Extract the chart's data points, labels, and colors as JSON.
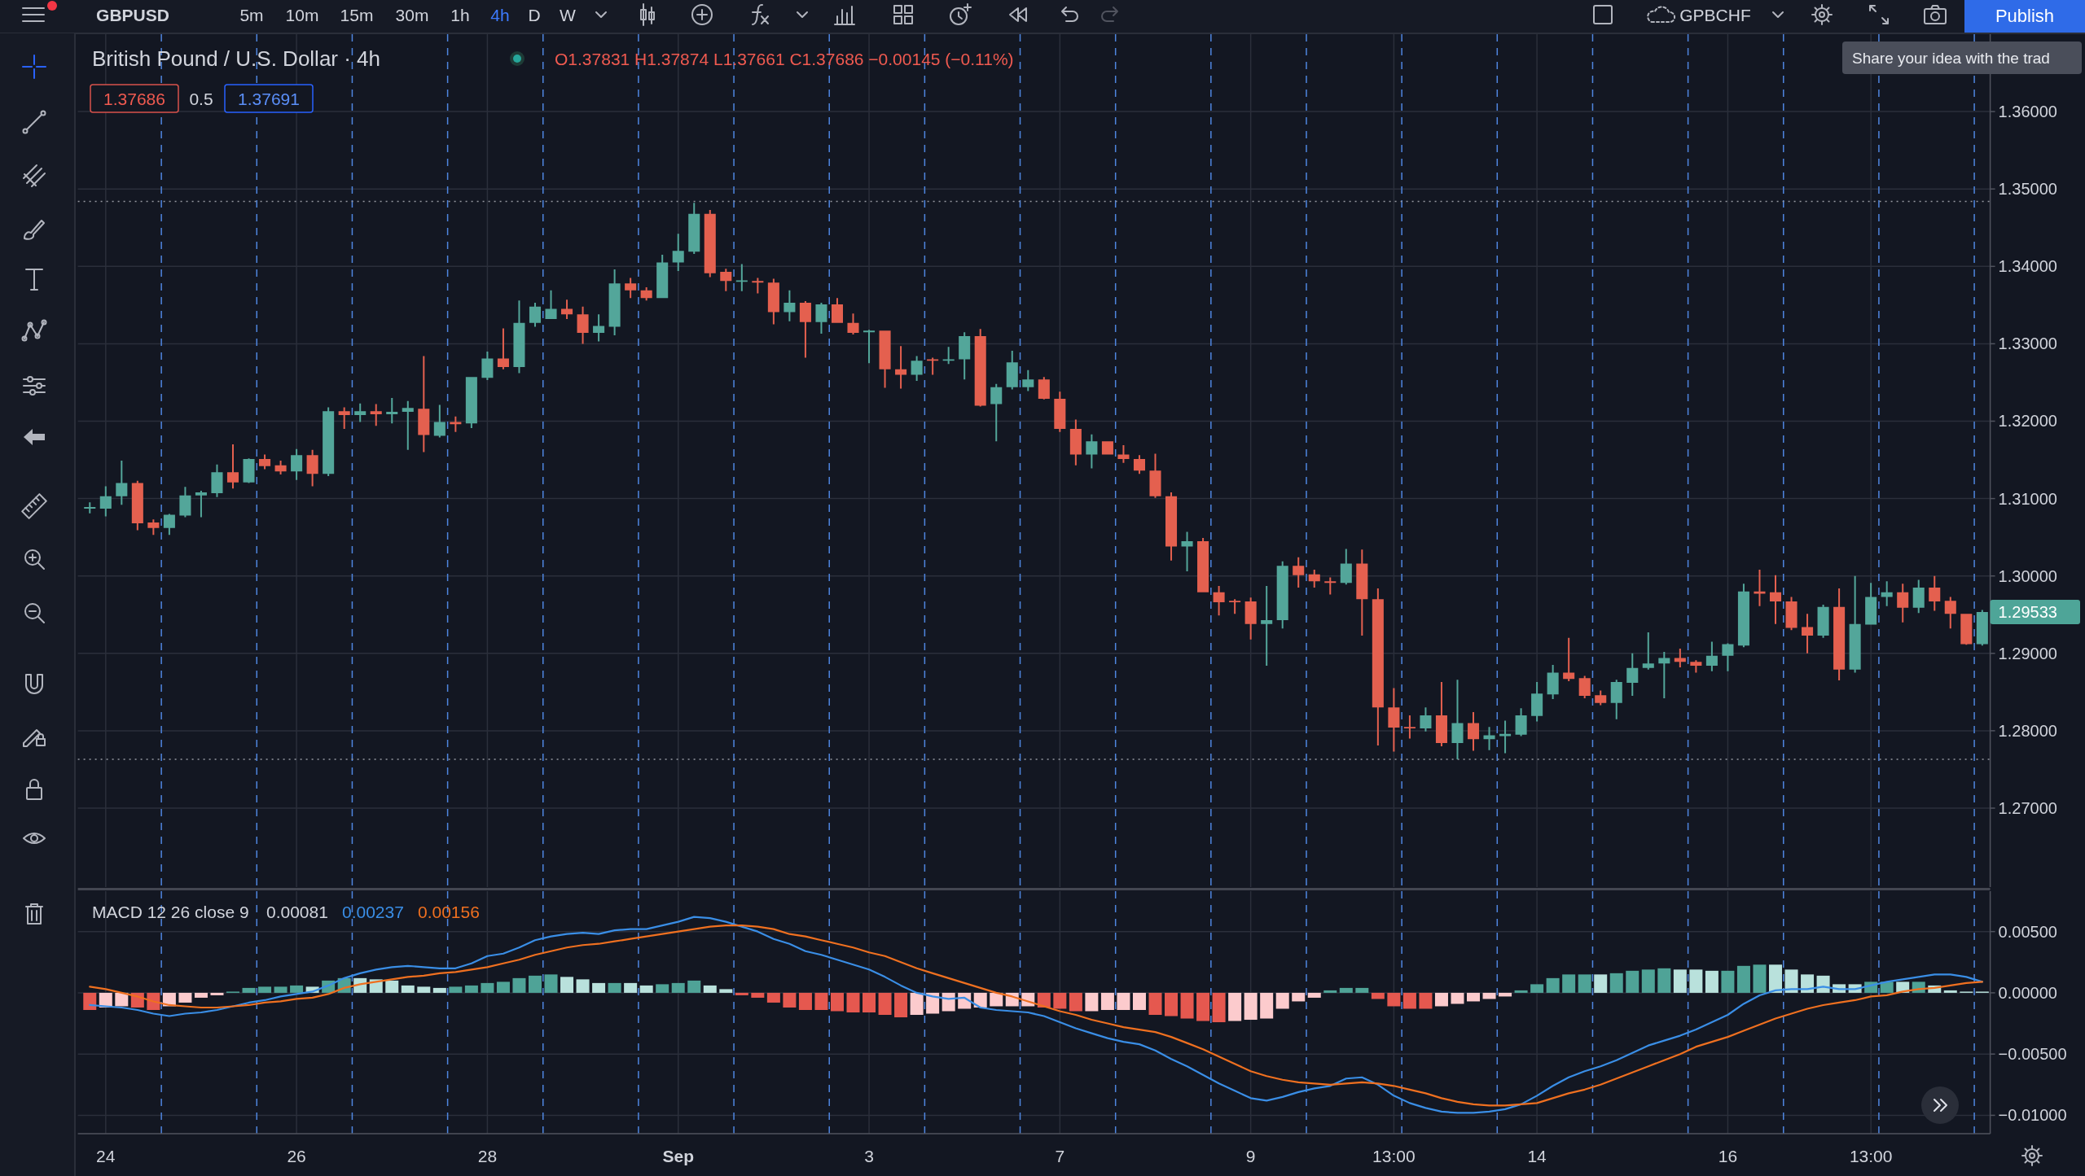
{
  "chart_data": [
    {
      "type": "candlestick",
      "title": "British Pound / U.S. Dollar · 4h",
      "categories": [
        null,
        "24",
        null,
        null,
        null,
        null,
        null,
        null,
        null,
        null,
        null,
        null,
        null,
        "26",
        null,
        null,
        null,
        null,
        null,
        null,
        null,
        null,
        null,
        null,
        null,
        "28",
        null,
        null,
        null,
        null,
        null,
        null,
        null,
        null,
        null,
        null,
        null,
        "Sep",
        null,
        null,
        null,
        null,
        null,
        null,
        null,
        null,
        null,
        null,
        null,
        "3",
        null,
        null,
        null,
        null,
        null,
        null,
        null,
        null,
        null,
        null,
        null,
        "7",
        null,
        null,
        null,
        null,
        null,
        null,
        null,
        null,
        null,
        null,
        null,
        "9",
        null,
        null,
        null,
        null,
        null,
        null,
        null,
        null,
        "13:00",
        null,
        null,
        null,
        null,
        null,
        null,
        null,
        null,
        "14",
        null,
        null,
        null,
        null,
        null,
        null,
        null,
        null,
        null,
        null,
        null,
        "16",
        null,
        null,
        null,
        null,
        null,
        null,
        null,
        null,
        "13:00",
        null,
        null,
        null,
        null,
        null,
        null,
        null
      ],
      "ohlc": [
        [
          1.3087,
          1.3095,
          1.3081,
          1.3089
        ],
        [
          1.3087,
          1.3116,
          1.3077,
          1.3103
        ],
        [
          1.3103,
          1.3149,
          1.3092,
          1.312
        ],
        [
          1.312,
          1.3123,
          1.3059,
          1.3068
        ],
        [
          1.3069,
          1.3073,
          1.3053,
          1.3062
        ],
        [
          1.3062,
          1.308,
          1.3053,
          1.3079
        ],
        [
          1.3078,
          1.3115,
          1.3076,
          1.3104
        ],
        [
          1.3104,
          1.311,
          1.3076,
          1.3108
        ],
        [
          1.3107,
          1.3144,
          1.3102,
          1.3134
        ],
        [
          1.3134,
          1.317,
          1.3113,
          1.3121
        ],
        [
          1.3121,
          1.3152,
          1.312,
          1.3151
        ],
        [
          1.3151,
          1.3157,
          1.3138,
          1.3142
        ],
        [
          1.3143,
          1.3149,
          1.3131,
          1.3135
        ],
        [
          1.3135,
          1.3164,
          1.3124,
          1.3156
        ],
        [
          1.3156,
          1.3163,
          1.3116,
          1.3132
        ],
        [
          1.3132,
          1.3218,
          1.3129,
          1.3213
        ],
        [
          1.3213,
          1.3218,
          1.319,
          1.3208
        ],
        [
          1.3208,
          1.3223,
          1.3199,
          1.3213
        ],
        [
          1.3213,
          1.3222,
          1.3194,
          1.3209
        ],
        [
          1.3209,
          1.323,
          1.3197,
          1.3212
        ],
        [
          1.3212,
          1.3226,
          1.3163,
          1.3217
        ],
        [
          1.3216,
          1.3284,
          1.316,
          1.3182
        ],
        [
          1.3181,
          1.3221,
          1.3179,
          1.3199
        ],
        [
          1.3199,
          1.3206,
          1.3186,
          1.3196
        ],
        [
          1.3197,
          1.3257,
          1.3191,
          1.3257
        ],
        [
          1.3256,
          1.329,
          1.3253,
          1.3281
        ],
        [
          1.3281,
          1.332,
          1.3267,
          1.327
        ],
        [
          1.327,
          1.3356,
          1.3262,
          1.3327
        ],
        [
          1.3327,
          1.3353,
          1.3322,
          1.3348
        ],
        [
          1.3332,
          1.3369,
          1.3332,
          1.3345
        ],
        [
          1.3345,
          1.3357,
          1.3332,
          1.3338
        ],
        [
          1.3338,
          1.3348,
          1.33,
          1.3314
        ],
        [
          1.3314,
          1.3338,
          1.3303,
          1.3323
        ],
        [
          1.3322,
          1.3396,
          1.3311,
          1.3378
        ],
        [
          1.3378,
          1.3385,
          1.3359,
          1.3369
        ],
        [
          1.3369,
          1.3373,
          1.3356,
          1.3359
        ],
        [
          1.3359,
          1.3415,
          1.3359,
          1.3405
        ],
        [
          1.3405,
          1.3442,
          1.3394,
          1.342
        ],
        [
          1.3419,
          1.3482,
          1.3416,
          1.3468
        ],
        [
          1.3468,
          1.3473,
          1.3386,
          1.3391
        ],
        [
          1.3393,
          1.3397,
          1.3368,
          1.3381
        ],
        [
          1.338,
          1.3403,
          1.3368,
          1.3382
        ],
        [
          1.3381,
          1.3385,
          1.3365,
          1.3379
        ],
        [
          1.3379,
          1.3384,
          1.3325,
          1.3341
        ],
        [
          1.3341,
          1.3369,
          1.3329,
          1.3353
        ],
        [
          1.3353,
          1.3355,
          1.3282,
          1.3328
        ],
        [
          1.3328,
          1.3353,
          1.3313,
          1.3351
        ],
        [
          1.3351,
          1.3359,
          1.3327,
          1.3327
        ],
        [
          1.3327,
          1.3339,
          1.3312,
          1.3314
        ],
        [
          1.3315,
          1.3318,
          1.3275,
          1.3317
        ],
        [
          1.3317,
          1.3317,
          1.3243,
          1.3267
        ],
        [
          1.3267,
          1.3297,
          1.3242,
          1.326
        ],
        [
          1.326,
          1.3284,
          1.3252,
          1.3278
        ],
        [
          1.328,
          1.3282,
          1.326,
          1.3278
        ],
        [
          1.3278,
          1.3296,
          1.3274,
          1.328
        ],
        [
          1.328,
          1.3315,
          1.3254,
          1.331
        ],
        [
          1.331,
          1.3319,
          1.3219,
          1.322
        ],
        [
          1.3222,
          1.3248,
          1.3174,
          1.3244
        ],
        [
          1.3244,
          1.3291,
          1.3241,
          1.3276
        ],
        [
          1.3244,
          1.3266,
          1.3239,
          1.3254
        ],
        [
          1.3254,
          1.3257,
          1.3228,
          1.3229
        ],
        [
          1.3229,
          1.3238,
          1.3186,
          1.319
        ],
        [
          1.319,
          1.3202,
          1.3143,
          1.3157
        ],
        [
          1.3157,
          1.3183,
          1.3139,
          1.3174
        ],
        [
          1.3174,
          1.3174,
          1.3157,
          1.3157
        ],
        [
          1.3157,
          1.3169,
          1.3146,
          1.3151
        ],
        [
          1.3151,
          1.3156,
          1.3132,
          1.3136
        ],
        [
          1.3136,
          1.3158,
          1.3101,
          1.3103
        ],
        [
          1.3103,
          1.3108,
          1.302,
          1.3038
        ],
        [
          1.3038,
          1.3057,
          1.3006,
          1.3045
        ],
        [
          1.3045,
          1.3049,
          1.2979,
          1.2979
        ],
        [
          1.2979,
          1.2987,
          1.2949,
          1.2966
        ],
        [
          1.2968,
          1.297,
          1.2951,
          1.2966
        ],
        [
          1.2967,
          1.2972,
          1.2918,
          1.2938
        ],
        [
          1.2938,
          1.2987,
          1.2884,
          1.2943
        ],
        [
          1.2943,
          1.3019,
          1.2932,
          1.3013
        ],
        [
          1.3013,
          1.3024,
          1.2985,
          1.3001
        ],
        [
          1.3002,
          1.3008,
          1.2985,
          1.2993
        ],
        [
          1.2993,
          1.2998,
          1.2976,
          1.2991
        ],
        [
          1.2991,
          1.3035,
          1.2989,
          1.3016
        ],
        [
          1.3016,
          1.3034,
          1.2923,
          1.297
        ],
        [
          1.297,
          1.2984,
          1.2781,
          1.283
        ],
        [
          1.283,
          1.2855,
          1.2773,
          1.2804
        ],
        [
          1.2805,
          1.282,
          1.279,
          1.2803
        ],
        [
          1.2803,
          1.283,
          1.2799,
          1.282
        ],
        [
          1.282,
          1.2863,
          1.278,
          1.2784
        ],
        [
          1.2784,
          1.2866,
          1.2763,
          1.281
        ],
        [
          1.281,
          1.2824,
          1.2774,
          1.2789
        ],
        [
          1.2789,
          1.2805,
          1.2775,
          1.2794
        ],
        [
          1.2793,
          1.2813,
          1.2771,
          1.2796
        ],
        [
          1.2795,
          1.2829,
          1.2793,
          1.282
        ],
        [
          1.2819,
          1.2863,
          1.2812,
          1.2848
        ],
        [
          1.2847,
          1.2885,
          1.2841,
          1.2875
        ],
        [
          1.2875,
          1.292,
          1.2864,
          1.2867
        ],
        [
          1.2868,
          1.2871,
          1.2842,
          1.2845
        ],
        [
          1.2846,
          1.2852,
          1.2833,
          1.2836
        ],
        [
          1.2836,
          1.2866,
          1.2815,
          1.2863
        ],
        [
          1.2862,
          1.29,
          1.2845,
          1.2881
        ],
        [
          1.2881,
          1.2927,
          1.2879,
          1.2887
        ],
        [
          1.2887,
          1.2902,
          1.2842,
          1.2894
        ],
        [
          1.2894,
          1.2906,
          1.2882,
          1.2889
        ],
        [
          1.2889,
          1.2891,
          1.2875,
          1.2884
        ],
        [
          1.2884,
          1.2915,
          1.2877,
          1.2897
        ],
        [
          1.2897,
          1.2913,
          1.2877,
          1.2912
        ],
        [
          1.291,
          1.299,
          1.2908,
          1.298
        ],
        [
          1.298,
          1.3008,
          1.2961,
          1.2977
        ],
        [
          1.2979,
          1.3001,
          1.2938,
          1.2967
        ],
        [
          1.2967,
          1.2973,
          1.293,
          1.2933
        ],
        [
          1.2934,
          1.2951,
          1.29,
          1.2923
        ],
        [
          1.2923,
          1.2963,
          1.292,
          1.296
        ],
        [
          1.296,
          1.2984,
          1.2865,
          1.2879
        ],
        [
          1.2879,
          1.3,
          1.2875,
          1.2938
        ],
        [
          1.2937,
          1.2991,
          1.2937,
          1.2973
        ],
        [
          1.2973,
          1.2993,
          1.2961,
          1.2979
        ],
        [
          1.2979,
          1.299,
          1.294,
          1.2959
        ],
        [
          1.2959,
          1.2995,
          1.2952,
          1.2985
        ],
        [
          1.2985,
          1.3,
          1.2955,
          1.2967
        ],
        [
          1.2968,
          1.2973,
          1.2932,
          1.2951
        ],
        [
          1.2951,
          1.2951,
          1.2911,
          1.2912
        ],
        [
          1.2912,
          1.2956,
          1.291,
          1.29533
        ]
      ],
      "colors": [
        "#53a69a",
        "#53a69a",
        "#53a69a",
        "#e4604f",
        "#e4604f",
        "#53a69a",
        "#53a69a",
        "#53a69a",
        "#53a69a",
        "#e4604f",
        "#53a69a",
        "#e4604f",
        "#e4604f",
        "#53a69a",
        "#e4604f",
        "#53a69a",
        "#e4604f",
        "#53a69a",
        "#e4604f",
        "#53a69a",
        "#53a69a",
        "#e4604f",
        "#53a69a",
        "#e4604f",
        "#53a69a",
        "#53a69a",
        "#e4604f",
        "#53a69a",
        "#53a69a",
        "#53a69a",
        "#e4604f",
        "#e4604f",
        "#53a69a",
        "#53a69a",
        "#e4604f",
        "#e4604f",
        "#53a69a",
        "#53a69a",
        "#53a69a",
        "#e4604f",
        "#e4604f",
        "#53a69a",
        "#e4604f",
        "#e4604f",
        "#53a69a",
        "#e4604f",
        "#53a69a",
        "#e4604f",
        "#e4604f",
        "#53a69a",
        "#e4604f",
        "#e4604f",
        "#53a69a",
        "#e4604f",
        "#53a69a",
        "#53a69a",
        "#e4604f",
        "#53a69a",
        "#53a69a",
        "#53a69a",
        "#e4604f",
        "#e4604f",
        "#e4604f",
        "#53a69a",
        "#e4604f",
        "#e4604f",
        "#e4604f",
        "#e4604f",
        "#e4604f",
        "#53a69a",
        "#e4604f",
        "#e4604f",
        "#e4604f",
        "#e4604f",
        "#53a69a",
        "#53a69a",
        "#e4604f",
        "#e4604f",
        "#e4604f",
        "#53a69a",
        "#e4604f",
        "#e4604f",
        "#e4604f",
        "#e4604f",
        "#53a69a",
        "#e4604f",
        "#53a69a",
        "#e4604f",
        "#53a69a",
        "#53a69a",
        "#53a69a",
        "#53a69a",
        "#53a69a",
        "#e4604f",
        "#e4604f",
        "#e4604f",
        "#53a69a",
        "#53a69a",
        "#53a69a",
        "#53a69a",
        "#e4604f",
        "#e4604f",
        "#53a69a",
        "#53a69a",
        "#53a69a",
        "#e4604f",
        "#e4604f",
        "#e4604f",
        "#e4604f",
        "#53a69a",
        "#e4604f",
        "#53a69a",
        "#53a69a",
        "#53a69a",
        "#e4604f",
        "#53a69a",
        "#e4604f",
        "#e4604f",
        "#e4604f",
        "#53a69a"
      ],
      "ylim": [
        1.2598,
        1.37
      ],
      "yticks": [
        {
          "value": 1.27,
          "label": "1.27000"
        },
        {
          "value": 1.28,
          "label": "1.28000"
        },
        {
          "value": 1.29,
          "label": "1.29000"
        },
        {
          "value": 1.3,
          "label": "1.30000"
        },
        {
          "value": 1.31,
          "label": "1.31000"
        },
        {
          "value": 1.32,
          "label": "1.32000"
        },
        {
          "value": 1.33,
          "label": "1.33000"
        },
        {
          "value": 1.34,
          "label": "1.34000"
        },
        {
          "value": 1.35,
          "label": "1.35000"
        },
        {
          "value": 1.36,
          "label": "1.36000"
        }
      ],
      "grid": true,
      "tick_labels": "y",
      "ref_lines": [
        {
          "axis": "y",
          "value": 1.3484,
          "color": "#9598a1",
          "line_style": "dotted"
        },
        {
          "axis": "y",
          "value": 1.2763,
          "color": "#9598a1",
          "line_style": "dotted"
        }
      ],
      "annotations": [
        "O1.37831 H1.37874 L1.37661 C1.37686 −0.00145 (−0.11%)",
        "1.37686",
        "0.5",
        "1.37691",
        "1.29533",
        "GBPUSD",
        "5m",
        "10m",
        "15m",
        "30m",
        "1h",
        "4h",
        "D",
        "W",
        "GPBCHF",
        "Publish",
        "Share your idea with the trad"
      ]
    },
    {
      "type": "bar",
      "title": "MACD 12 26 close 9",
      "categories": [
        null,
        "24",
        null,
        null,
        null,
        null,
        null,
        null,
        null,
        null,
        null,
        null,
        null,
        "26",
        null,
        null,
        null,
        null,
        null,
        null,
        null,
        null,
        null,
        null,
        null,
        "28",
        null,
        null,
        null,
        null,
        null,
        null,
        null,
        null,
        null,
        null,
        null,
        "Sep",
        null,
        null,
        null,
        null,
        null,
        null,
        null,
        null,
        null,
        null,
        null,
        "3",
        null,
        null,
        null,
        null,
        null,
        null,
        null,
        null,
        null,
        null,
        null,
        "7",
        null,
        null,
        null,
        null,
        null,
        null,
        null,
        null,
        null,
        null,
        null,
        "9",
        null,
        null,
        null,
        null,
        null,
        null,
        null,
        null,
        "13:00",
        null,
        null,
        null,
        null,
        null,
        null,
        null,
        null,
        "14",
        null,
        null,
        null,
        null,
        null,
        null,
        null,
        null,
        null,
        null,
        null,
        "16",
        null,
        null,
        null,
        null,
        null,
        null,
        null,
        null,
        "13:00",
        null,
        null,
        null,
        null,
        null,
        null,
        null
      ],
      "series": [
        {
          "values": [
            -0.0014,
            -0.0012,
            -0.0011,
            -0.0012,
            -0.0014,
            -0.0011,
            -0.0008,
            -0.0004,
            -0.0002,
            0.0001,
            0.0004,
            0.0005,
            0.0005,
            0.0006,
            0.0005,
            0.001,
            0.0012,
            0.0012,
            0.0011,
            0.001,
            0.0006,
            0.0005,
            0.0004,
            0.0005,
            0.0006,
            0.0008,
            0.0009,
            0.0012,
            0.0014,
            0.0015,
            0.0013,
            0.0011,
            0.0008,
            0.0008,
            0.0008,
            0.0006,
            0.0007,
            0.0008,
            0.001,
            0.0006,
            0.0003,
            -0.0002,
            -0.0004,
            -0.0008,
            -0.0012,
            -0.0014,
            -0.0014,
            -0.0015,
            -0.0016,
            -0.0016,
            -0.0018,
            -0.002,
            -0.0018,
            -0.0017,
            -0.0015,
            -0.0013,
            -0.0012,
            -0.0011,
            -0.0011,
            -0.0011,
            -0.0012,
            -0.0013,
            -0.0015,
            -0.0015,
            -0.0014,
            -0.0014,
            -0.0014,
            -0.0018,
            -0.0019,
            -0.0021,
            -0.0023,
            -0.0024,
            -0.0023,
            -0.0022,
            -0.0021,
            -0.0013,
            -0.0007,
            -0.0004,
            0.0002,
            0.0004,
            0.0004,
            -0.0005,
            -0.0011,
            -0.0013,
            -0.0013,
            -0.0011,
            -0.0009,
            -0.0007,
            -0.0005,
            -0.0003,
            0.0002,
            0.0007,
            0.0012,
            0.0015,
            0.0015,
            0.0015,
            0.0016,
            0.0018,
            0.0019,
            0.002,
            0.0019,
            0.0019,
            0.0018,
            0.0018,
            0.0022,
            0.0023,
            0.0023,
            0.0019,
            0.0015,
            0.0014,
            0.0007,
            0.0007,
            0.0009,
            0.0009,
            0.0009,
            0.0009,
            0.0006,
            0.0002,
            0.0001,
            0.0001
          ],
          "colors": [
            "#e5584f",
            "#fccbcd",
            "#fccbcd",
            "#e5584f",
            "#e5584f",
            "#fccbcd",
            "#fccbcd",
            "#fccbcd",
            "#fccbcd",
            "#4fa397",
            "#4fa397",
            "#4fa397",
            "#4fa397",
            "#4fa397",
            "#b9e1dc",
            "#4fa397",
            "#4fa397",
            "#b9e1dc",
            "#b9e1dc",
            "#b9e1dc",
            "#b9e1dc",
            "#b9e1dc",
            "#b9e1dc",
            "#4fa397",
            "#4fa397",
            "#4fa397",
            "#4fa397",
            "#4fa397",
            "#4fa397",
            "#4fa397",
            "#b9e1dc",
            "#b9e1dc",
            "#b9e1dc",
            "#4fa397",
            "#b9e1dc",
            "#b9e1dc",
            "#4fa397",
            "#4fa397",
            "#4fa397",
            "#b9e1dc",
            "#b9e1dc",
            "#e5584f",
            "#e5584f",
            "#e5584f",
            "#e5584f",
            "#e5584f",
            "#e5584f",
            "#e5584f",
            "#e5584f",
            "#e5584f",
            "#e5584f",
            "#e5584f",
            "#fccbcd",
            "#fccbcd",
            "#fccbcd",
            "#fccbcd",
            "#fccbcd",
            "#fccbcd",
            "#fccbcd",
            "#fccbcd",
            "#e5584f",
            "#e5584f",
            "#e5584f",
            "#fccbcd",
            "#fccbcd",
            "#fccbcd",
            "#fccbcd",
            "#e5584f",
            "#e5584f",
            "#e5584f",
            "#e5584f",
            "#e5584f",
            "#fccbcd",
            "#fccbcd",
            "#fccbcd",
            "#fccbcd",
            "#fccbcd",
            "#fccbcd",
            "#4fa397",
            "#4fa397",
            "#4fa397",
            "#e5584f",
            "#e5584f",
            "#e5584f",
            "#e5584f",
            "#fccbcd",
            "#fccbcd",
            "#fccbcd",
            "#fccbcd",
            "#fccbcd",
            "#4fa397",
            "#4fa397",
            "#4fa397",
            "#4fa397",
            "#4fa397",
            "#b9e1dc",
            "#4fa397",
            "#4fa397",
            "#4fa397",
            "#4fa397",
            "#b9e1dc",
            "#b9e1dc",
            "#b9e1dc",
            "#4fa397",
            "#4fa397",
            "#4fa397",
            "#b9e1dc",
            "#b9e1dc",
            "#b9e1dc",
            "#b9e1dc",
            "#b9e1dc",
            "#b9e1dc",
            "#4fa397",
            "#4fa397",
            "#b9e1dc",
            "#4fa397",
            "#b9e1dc",
            "#b9e1dc",
            "#b9e1dc",
            "#b9e1dc"
          ]
        },
        {
          "type": "line",
          "color": "#3a8ee6",
          "values": [
            -0.001,
            -0.0011,
            -0.0012,
            -0.0014,
            -0.0017,
            -0.0019,
            -0.0017,
            -0.0016,
            -0.0014,
            -0.0011,
            -0.0008,
            -0.0006,
            -0.0003,
            -0.0001,
            0.0001,
            0.0006,
            0.0012,
            0.0016,
            0.0019,
            0.0021,
            0.0022,
            0.0021,
            0.002,
            0.002,
            0.0024,
            0.003,
            0.0032,
            0.0037,
            0.0043,
            0.0046,
            0.0048,
            0.0049,
            0.0048,
            0.0051,
            0.0052,
            0.0052,
            0.0055,
            0.0058,
            0.0062,
            0.0061,
            0.0058,
            0.0054,
            0.005,
            0.0044,
            0.004,
            0.0034,
            0.0031,
            0.0027,
            0.0023,
            0.0019,
            0.0013,
            0.0006,
            0,
            -0.0003,
            -0.0005,
            -0.0004,
            -0.0012,
            -0.0014,
            -0.0015,
            -0.0016,
            -0.0019,
            -0.0024,
            -0.0029,
            -0.0033,
            -0.0037,
            -0.004,
            -0.0042,
            -0.0047,
            -0.0054,
            -0.006,
            -0.0067,
            -0.0074,
            -0.008,
            -0.0086,
            -0.0088,
            -0.0085,
            -0.0081,
            -0.0078,
            -0.0076,
            -0.007,
            -0.0069,
            -0.0075,
            -0.0084,
            -0.009,
            -0.0094,
            -0.0097,
            -0.0098,
            -0.0098,
            -0.0097,
            -0.0095,
            -0.0091,
            -0.0084,
            -0.0076,
            -0.0069,
            -0.0064,
            -0.006,
            -0.0055,
            -0.0049,
            -0.0043,
            -0.0039,
            -0.0035,
            -0.003,
            -0.0024,
            -0.0018,
            -0.0009,
            -0.0002,
            0.0002,
            0.0003,
            0.0003,
            0.0005,
            0.0003,
            0.0003,
            0.0006,
            0.0009,
            0.0011,
            0.0013,
            0.0015,
            0.0015,
            0.0013,
            0.0009
          ]
        },
        {
          "type": "line",
          "color": "#ef7020",
          "values": [
            0.0005,
            0.0003,
            0,
            -0.0003,
            -0.0007,
            -0.001,
            -0.0011,
            -0.0012,
            -0.0012,
            -0.0011,
            -0.001,
            -0.0008,
            -0.0007,
            -0.0005,
            -0.0004,
            -0.0001,
            0.0004,
            0.0007,
            0.0009,
            0.0011,
            0.0013,
            0.0014,
            0.0016,
            0.0017,
            0.0019,
            0.0021,
            0.0024,
            0.0027,
            0.0031,
            0.0034,
            0.0037,
            0.0039,
            0.004,
            0.0042,
            0.0044,
            0.0046,
            0.0048,
            0.005,
            0.0052,
            0.0054,
            0.0055,
            0.0055,
            0.0054,
            0.0052,
            0.0048,
            0.0046,
            0.0043,
            0.004,
            0.0037,
            0.0033,
            0.003,
            0.0025,
            0.002,
            0.0016,
            0.0012,
            0.0008,
            0.0004,
            0,
            -0.0003,
            -0.0007,
            -0.0011,
            -0.0015,
            -0.0018,
            -0.0022,
            -0.0025,
            -0.0028,
            -0.003,
            -0.0032,
            -0.0036,
            -0.0041,
            -0.0046,
            -0.0052,
            -0.0058,
            -0.0064,
            -0.0068,
            -0.0071,
            -0.0073,
            -0.0074,
            -0.0075,
            -0.0074,
            -0.0073,
            -0.0074,
            -0.0076,
            -0.0079,
            -0.0082,
            -0.0086,
            -0.0089,
            -0.0091,
            -0.0092,
            -0.0092,
            -0.0091,
            -0.009,
            -0.0086,
            -0.0082,
            -0.0079,
            -0.0075,
            -0.007,
            -0.0065,
            -0.006,
            -0.0055,
            -0.005,
            -0.0044,
            -0.004,
            -0.0036,
            -0.0031,
            -0.0026,
            -0.0021,
            -0.0017,
            -0.0013,
            -0.001,
            -0.0008,
            -0.0006,
            -0.0003,
            -0.0002,
            0.0001,
            0.0003,
            0.0004,
            0.0006,
            0.0008,
            0.0009
          ]
        }
      ],
      "ylim": [
        -0.0115,
        0.0083
      ],
      "yticks": [
        {
          "value": -0.01,
          "label": "−0.01000"
        },
        {
          "value": -0.005,
          "label": "−0.00500"
        },
        {
          "value": 0,
          "label": "0.00000"
        },
        {
          "value": 0.005,
          "label": "0.00500"
        }
      ],
      "grid": true,
      "annotations": [
        "0.00081",
        "0.00237",
        "0.00156"
      ]
    }
  ]
}
